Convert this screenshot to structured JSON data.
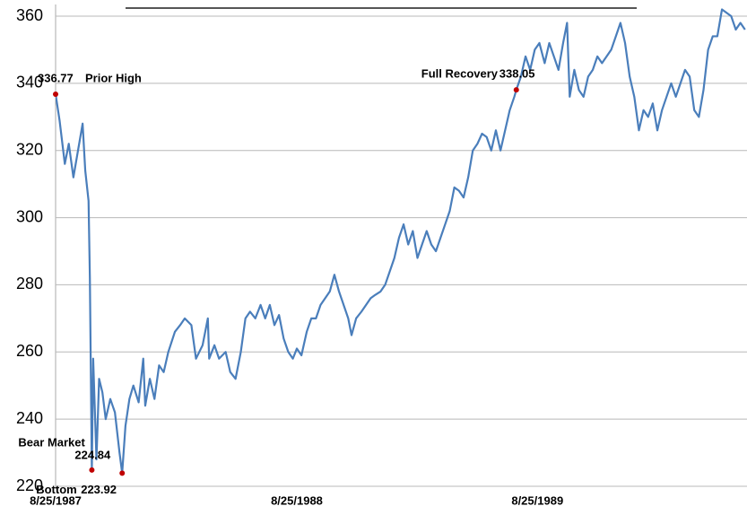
{
  "chart_data": {
    "type": "line",
    "color": "#4a7ebb",
    "marker_color": "#c00000",
    "grid": true,
    "ylim": [
      220,
      360
    ],
    "yticks": [
      220,
      240,
      260,
      280,
      300,
      320,
      340,
      360
    ],
    "xlim": [
      "1987-08-25",
      "1990-07-09"
    ],
    "xticks": [
      {
        "value": "1987-08-25",
        "label": "8/25/1987"
      },
      {
        "value": "1988-08-25",
        "label": "8/25/1988"
      },
      {
        "value": "1989-08-25",
        "label": "8/25/1989"
      }
    ],
    "x": [
      "1987-08-25",
      "1987-08-31",
      "1987-09-08",
      "1987-09-14",
      "1987-09-21",
      "1987-09-28",
      "1987-10-05",
      "1987-10-09",
      "1987-10-14",
      "1987-10-16",
      "1987-10-19",
      "1987-10-21",
      "1987-10-26",
      "1987-10-30",
      "1987-11-04",
      "1987-11-09",
      "1987-11-16",
      "1987-11-23",
      "1987-11-30",
      "1987-12-04",
      "1987-12-09",
      "1987-12-15",
      "1987-12-21",
      "1987-12-29",
      "1988-01-05",
      "1988-01-08",
      "1988-01-15",
      "1988-01-22",
      "1988-01-29",
      "1988-02-05",
      "1988-02-12",
      "1988-02-22",
      "1988-03-01",
      "1988-03-08",
      "1988-03-18",
      "1988-03-25",
      "1988-04-04",
      "1988-04-12",
      "1988-04-14",
      "1988-04-22",
      "1988-04-29",
      "1988-05-09",
      "1988-05-16",
      "1988-05-24",
      "1988-06-01",
      "1988-06-08",
      "1988-06-15",
      "1988-06-23",
      "1988-07-01",
      "1988-07-08",
      "1988-07-15",
      "1988-07-22",
      "1988-07-29",
      "1988-08-05",
      "1988-08-12",
      "1988-08-19",
      "1988-08-25",
      "1988-09-01",
      "1988-09-09",
      "1988-09-16",
      "1988-09-23",
      "1988-09-30",
      "1988-10-07",
      "1988-10-14",
      "1988-10-21",
      "1988-10-28",
      "1988-11-04",
      "1988-11-11",
      "1988-11-16",
      "1988-11-23",
      "1988-12-01",
      "1988-12-08",
      "1988-12-15",
      "1988-12-22",
      "1988-12-30",
      "1989-01-06",
      "1989-01-13",
      "1989-01-20",
      "1989-01-27",
      "1989-02-03",
      "1989-02-10",
      "1989-02-17",
      "1989-02-24",
      "1989-03-03",
      "1989-03-10",
      "1989-03-17",
      "1989-03-24",
      "1989-03-31",
      "1989-04-07",
      "1989-04-14",
      "1989-04-21",
      "1989-04-28",
      "1989-05-05",
      "1989-05-12",
      "1989-05-19",
      "1989-05-26",
      "1989-06-02",
      "1989-06-09",
      "1989-06-16",
      "1989-06-23",
      "1989-06-30",
      "1989-07-07",
      "1989-07-14",
      "1989-07-21",
      "1989-07-24",
      "1989-07-31",
      "1989-08-07",
      "1989-08-14",
      "1989-08-21",
      "1989-08-28",
      "1989-09-05",
      "1989-09-12",
      "1989-09-19",
      "1989-09-26",
      "1989-10-03",
      "1989-10-09",
      "1989-10-13",
      "1989-10-20",
      "1989-10-27",
      "1989-11-03",
      "1989-11-10",
      "1989-11-17",
      "1989-11-24",
      "1989-12-01",
      "1989-12-08",
      "1989-12-15",
      "1989-12-22",
      "1989-12-29",
      "1990-01-05",
      "1990-01-12",
      "1990-01-19",
      "1990-01-26",
      "1990-02-02",
      "1990-02-09",
      "1990-02-16",
      "1990-02-23",
      "1990-03-02",
      "1990-03-09",
      "1990-03-16",
      "1990-03-23",
      "1990-03-30",
      "1990-04-06",
      "1990-04-13",
      "1990-04-20",
      "1990-04-27",
      "1990-05-04",
      "1990-05-11",
      "1990-05-18",
      "1990-05-25",
      "1990-06-01",
      "1990-06-08",
      "1990-06-15",
      "1990-06-22",
      "1990-06-29",
      "1990-07-06"
    ],
    "values": [
      336.77,
      329,
      316,
      322,
      312,
      320,
      328,
      314,
      305,
      282,
      224.84,
      258,
      228,
      252,
      248,
      240,
      246,
      242,
      230,
      223.92,
      238,
      246,
      250,
      245,
      258,
      244,
      252,
      246,
      256,
      254,
      260,
      266,
      268,
      270,
      268,
      258,
      262,
      270,
      258,
      262,
      258,
      260,
      254,
      252,
      260,
      270,
      272,
      270,
      274,
      270,
      274,
      268,
      271,
      264,
      260,
      258,
      261,
      259,
      266,
      270,
      270,
      274,
      276,
      278,
      283,
      278,
      274,
      270,
      265,
      270,
      272,
      274,
      276,
      277,
      278,
      280,
      284,
      288,
      294,
      298,
      292,
      296,
      288,
      292,
      296,
      292,
      290,
      294,
      298,
      302,
      309,
      308,
      306,
      312,
      320,
      322,
      325,
      324,
      320,
      326,
      320,
      326,
      332,
      336,
      338.05,
      342,
      348,
      344,
      350,
      352,
      346,
      352,
      348,
      344,
      352,
      358,
      336,
      344,
      338,
      336,
      342,
      344,
      348,
      346,
      348,
      350,
      354,
      358,
      352,
      342,
      336,
      326,
      332,
      330,
      334,
      326,
      332,
      336,
      340,
      336,
      340,
      344,
      342,
      332,
      330,
      338,
      350,
      354,
      354,
      362,
      361,
      360,
      356,
      358,
      356
    ],
    "annotations": [
      {
        "text": "Prior High",
        "value_label": "336.77",
        "x": "1987-08-25",
        "y": 336.77
      },
      {
        "text": "Bear Market",
        "value_label": "224.84",
        "x": "1987-10-19",
        "y": 224.84
      },
      {
        "text": "Bottom",
        "value_label": "223.92",
        "x": "1987-12-04",
        "y": 223.92
      },
      {
        "text": "Full Recovery",
        "value_label": "338.05",
        "x": "1989-07-24",
        "y": 338.05
      }
    ]
  }
}
